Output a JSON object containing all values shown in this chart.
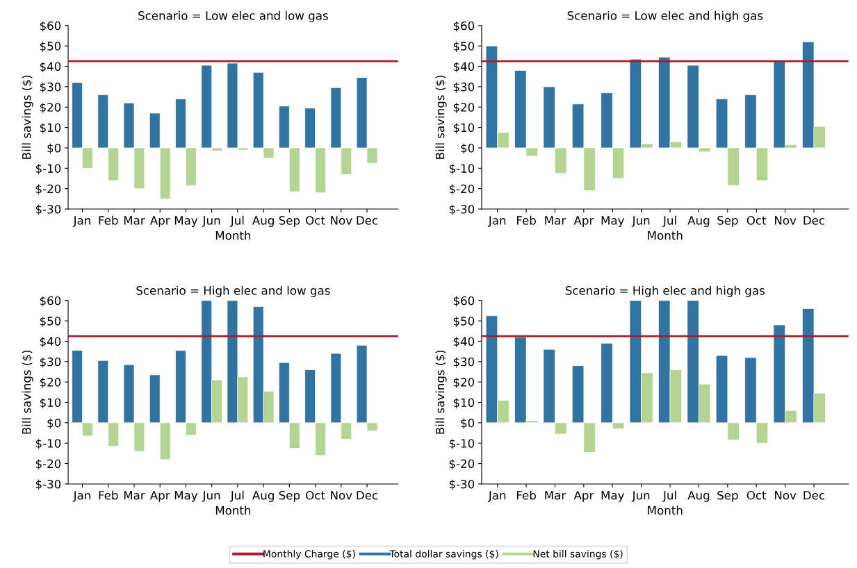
{
  "chart_data": [
    {
      "type": "bar",
      "title": "Scenario = Low elec and low gas",
      "xlabel": "Month",
      "ylabel": "Bill savings ($)",
      "categories": [
        "Jan",
        "Feb",
        "Mar",
        "Apr",
        "May",
        "Jun",
        "Jul",
        "Aug",
        "Sep",
        "Oct",
        "Nov",
        "Dec"
      ],
      "series": [
        {
          "name": "Total dollar savings ($)",
          "color": "#3274a1",
          "values": [
            32,
            26,
            22,
            17,
            24,
            40.5,
            41.5,
            37,
            20.5,
            19.5,
            29.5,
            34.5
          ]
        },
        {
          "name": "Net bill savings ($)",
          "color": "#b3d493",
          "values": [
            -10,
            -16,
            -20,
            -25,
            -18.5,
            -1.5,
            -1,
            -5,
            -21.5,
            -22,
            -13,
            -7.5
          ]
        }
      ],
      "ref_lines": [
        {
          "axis": "y",
          "value": 42.5,
          "label": "Monthly Charge ($)",
          "color": "#b2182b"
        }
      ],
      "ylim": [
        -30,
        60
      ],
      "yticks": [
        {
          "value": -30,
          "label": "$-30"
        },
        {
          "value": -20,
          "label": "$-20"
        },
        {
          "value": -10,
          "label": "$-10"
        },
        {
          "value": 0,
          "label": "$0"
        },
        {
          "value": 10,
          "label": "$10"
        },
        {
          "value": 20,
          "label": "$20"
        },
        {
          "value": 30,
          "label": "$30"
        },
        {
          "value": 40,
          "label": "$40"
        },
        {
          "value": 50,
          "label": "$50"
        },
        {
          "value": 60,
          "label": "$60"
        }
      ],
      "grid": false,
      "legend": "bottom"
    },
    {
      "type": "bar",
      "title": "Scenario = Low elec and high gas",
      "xlabel": "Month",
      "ylabel": "Bill savings ($)",
      "categories": [
        "Jan",
        "Feb",
        "Mar",
        "Apr",
        "May",
        "Jun",
        "Jul",
        "Aug",
        "Sep",
        "Oct",
        "Nov",
        "Dec"
      ],
      "series": [
        {
          "name": "Total dollar savings ($)",
          "color": "#3274a1",
          "values": [
            50,
            38,
            30,
            21.5,
            27,
            43.5,
            44.5,
            40.5,
            24,
            26,
            43,
            52
          ]
        },
        {
          "name": "Net bill savings ($)",
          "color": "#b3d493",
          "values": [
            7.5,
            -4,
            -12.5,
            -21,
            -15,
            2,
            3,
            -2,
            -18.5,
            -16,
            1.5,
            10.5
          ]
        }
      ],
      "ref_lines": [
        {
          "axis": "y",
          "value": 42.5,
          "color": "#b2182b"
        }
      ],
      "ylim": [
        -30,
        60
      ],
      "yticks": [
        {
          "value": -30,
          "label": "$-30"
        },
        {
          "value": -20,
          "label": "$-20"
        },
        {
          "value": -10,
          "label": "$-10"
        },
        {
          "value": 0,
          "label": "$0"
        },
        {
          "value": 10,
          "label": "$10"
        },
        {
          "value": 20,
          "label": "$20"
        },
        {
          "value": 30,
          "label": "$30"
        },
        {
          "value": 40,
          "label": "$40"
        },
        {
          "value": 50,
          "label": "$50"
        },
        {
          "value": 60,
          "label": "$60"
        }
      ],
      "grid": false
    },
    {
      "type": "bar",
      "title": "Scenario = High elec and low gas",
      "xlabel": "Month",
      "ylabel": "Bill savings ($)",
      "categories": [
        "Jan",
        "Feb",
        "Mar",
        "Apr",
        "May",
        "Jun",
        "Jul",
        "Aug",
        "Sep",
        "Oct",
        "Nov",
        "Dec"
      ],
      "series": [
        {
          "name": "Total dollar savings ($)",
          "color": "#3274a1",
          "values": [
            35.5,
            30.5,
            28.5,
            23.5,
            35.5,
            60,
            60,
            57,
            29.5,
            26,
            34,
            38
          ]
        },
        {
          "name": "Net bill savings ($)",
          "color": "#b3d493",
          "values": [
            -6.5,
            -11.5,
            -14,
            -18,
            -6,
            21,
            22.5,
            15.5,
            -12.5,
            -16,
            -8,
            -4
          ]
        }
      ],
      "ref_lines": [
        {
          "axis": "y",
          "value": 42.5,
          "color": "#b2182b"
        }
      ],
      "ylim": [
        -30,
        60
      ],
      "yticks": [
        {
          "value": -30,
          "label": "$-30"
        },
        {
          "value": -20,
          "label": "$-20"
        },
        {
          "value": -10,
          "label": "$-10"
        },
        {
          "value": 0,
          "label": "$0"
        },
        {
          "value": 10,
          "label": "$10"
        },
        {
          "value": 20,
          "label": "$20"
        },
        {
          "value": 30,
          "label": "$30"
        },
        {
          "value": 40,
          "label": "$40"
        },
        {
          "value": 50,
          "label": "$50"
        },
        {
          "value": 60,
          "label": "$60"
        }
      ],
      "grid": false
    },
    {
      "type": "bar",
      "title": "Scenario = High elec and high gas",
      "xlabel": "Month",
      "ylabel": "Bill savings ($)",
      "categories": [
        "Jan",
        "Feb",
        "Mar",
        "Apr",
        "May",
        "Jun",
        "Jul",
        "Aug",
        "Sep",
        "Oct",
        "Nov",
        "Dec"
      ],
      "series": [
        {
          "name": "Total dollar savings ($)",
          "color": "#3274a1",
          "values": [
            52.5,
            42,
            36,
            28,
            39,
            60,
            60,
            60,
            33,
            32,
            48,
            56
          ]
        },
        {
          "name": "Net bill savings ($)",
          "color": "#b3d493",
          "values": [
            11,
            1,
            -5.5,
            -14.5,
            -3,
            24.5,
            26,
            19,
            -8.5,
            -10,
            6,
            14.5
          ]
        }
      ],
      "ref_lines": [
        {
          "axis": "y",
          "value": 42.5,
          "color": "#b2182b"
        }
      ],
      "ylim": [
        -30,
        60
      ],
      "yticks": [
        {
          "value": -30,
          "label": "$-30"
        },
        {
          "value": -20,
          "label": "$-20"
        },
        {
          "value": -10,
          "label": "$-10"
        },
        {
          "value": 0,
          "label": "$0"
        },
        {
          "value": 10,
          "label": "$10"
        },
        {
          "value": 20,
          "label": "$20"
        },
        {
          "value": 30,
          "label": "$30"
        },
        {
          "value": 40,
          "label": "$40"
        },
        {
          "value": 50,
          "label": "$50"
        },
        {
          "value": 60,
          "label": "$60"
        }
      ],
      "grid": false
    }
  ]
}
